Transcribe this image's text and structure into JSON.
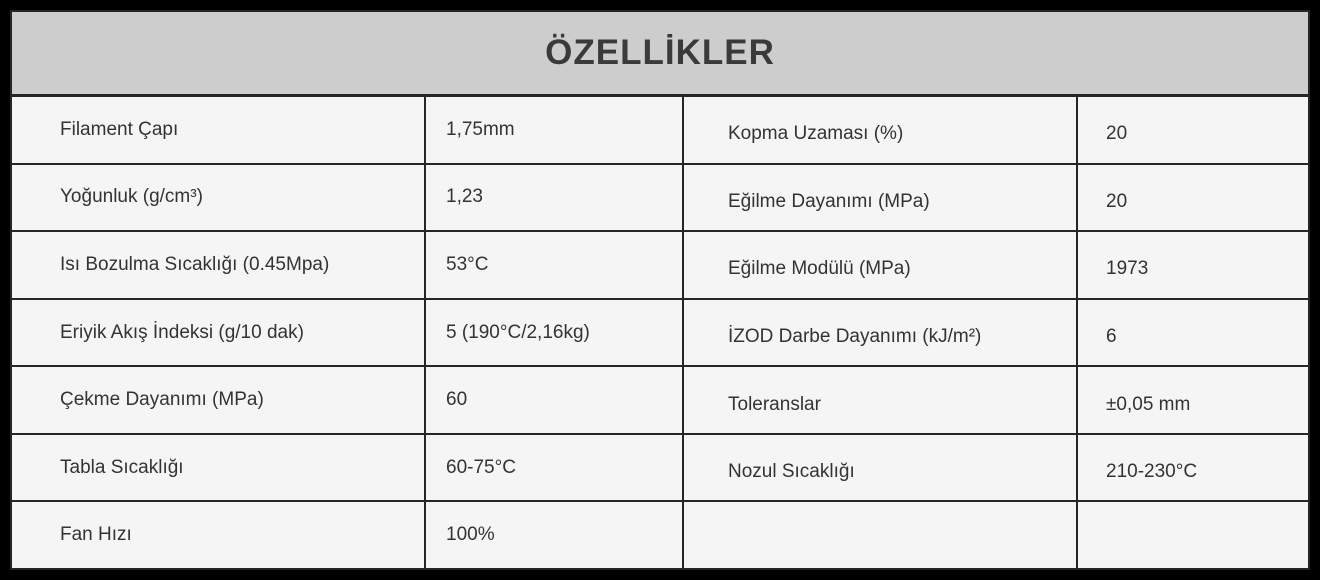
{
  "title": "ÖZELLİKLER",
  "colors": {
    "page_bg": "#000000",
    "header_bg": "#cdcdcd",
    "row_bg": "#f5f5f5",
    "border": "#262626",
    "text": "#333333"
  },
  "table": {
    "left_rows": [
      {
        "label": "Filament Çapı",
        "value": "1,75mm"
      },
      {
        "label": "Yoğunluk (g/cm³)",
        "value": "1,23"
      },
      {
        "label": "Isı Bozulma Sıcaklığı (0.45Mpa)",
        "value": "53°C"
      },
      {
        "label": "Eriyik Akış İndeksi (g/10 dak)",
        "value": "5 (190°C/2,16kg)"
      },
      {
        "label": "Çekme Dayanımı (MPa)",
        "value": "60"
      },
      {
        "label": "Tabla Sıcaklığı",
        "value": "60-75°C"
      },
      {
        "label": "Fan Hızı",
        "value": "100%"
      }
    ],
    "right_rows": [
      {
        "label": "Kopma Uzaması (%)",
        "value": "20"
      },
      {
        "label": "Eğilme Dayanımı (MPa)",
        "value": "20"
      },
      {
        "label": "Eğilme Modülü (MPa)",
        "value": "1973"
      },
      {
        "label": "İZOD Darbe Dayanımı (kJ/m²)",
        "value": "6"
      },
      {
        "label": "Toleranslar",
        "value": "±0,05 mm"
      },
      {
        "label": "Nozul Sıcaklığı",
        "value": "210-230°C"
      },
      {
        "label": "",
        "value": ""
      }
    ]
  }
}
